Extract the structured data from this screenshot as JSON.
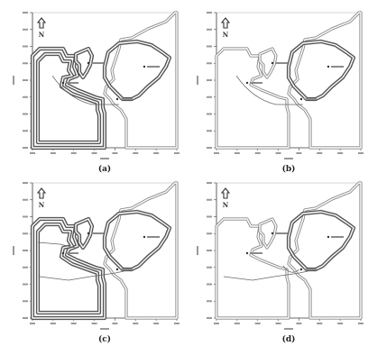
{
  "north_label": "N",
  "panels": [
    {
      "id": "a",
      "caption": "(a)",
      "style": "mixed"
    },
    {
      "id": "b",
      "caption": "(b)",
      "style": "light"
    },
    {
      "id": "c",
      "caption": "(c)",
      "style": "mixed"
    },
    {
      "id": "d",
      "caption": "(d)",
      "style": "light"
    }
  ],
  "colors": {
    "boundary": "#888888",
    "boundary_dark": "#555555",
    "axis": "#444444",
    "fill": "#ffffff"
  }
}
